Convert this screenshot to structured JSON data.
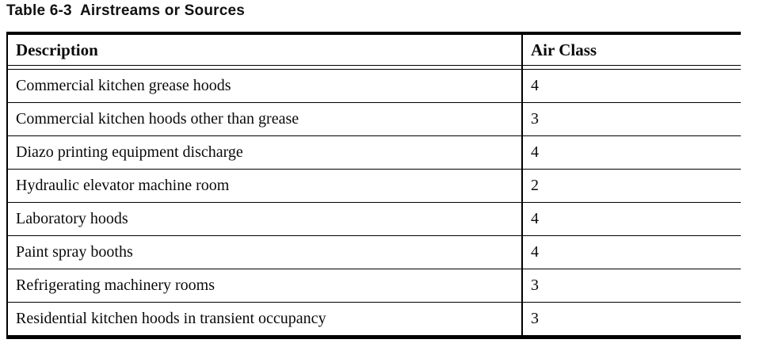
{
  "title": "Table 6-3  Airstreams or Sources",
  "table": {
    "columns": [
      {
        "label": "Description"
      },
      {
        "label": "Air Class"
      }
    ],
    "rows": [
      {
        "description": "Commercial kitchen grease hoods",
        "air_class": "4"
      },
      {
        "description": "Commercial kitchen hoods other than grease",
        "air_class": "3"
      },
      {
        "description": "Diazo printing equipment discharge",
        "air_class": "4"
      },
      {
        "description": "Hydraulic elevator machine room",
        "air_class": "2"
      },
      {
        "description": "Laboratory hoods",
        "air_class": "4"
      },
      {
        "description": "Paint spray booths",
        "air_class": "4"
      },
      {
        "description": "Refrigerating machinery rooms",
        "air_class": "3"
      },
      {
        "description": "Residential kitchen hoods in transient occupancy",
        "air_class": "3"
      }
    ],
    "colors": {
      "border": "#000000",
      "text": "#0a0a0a",
      "background": "#ffffff"
    }
  }
}
